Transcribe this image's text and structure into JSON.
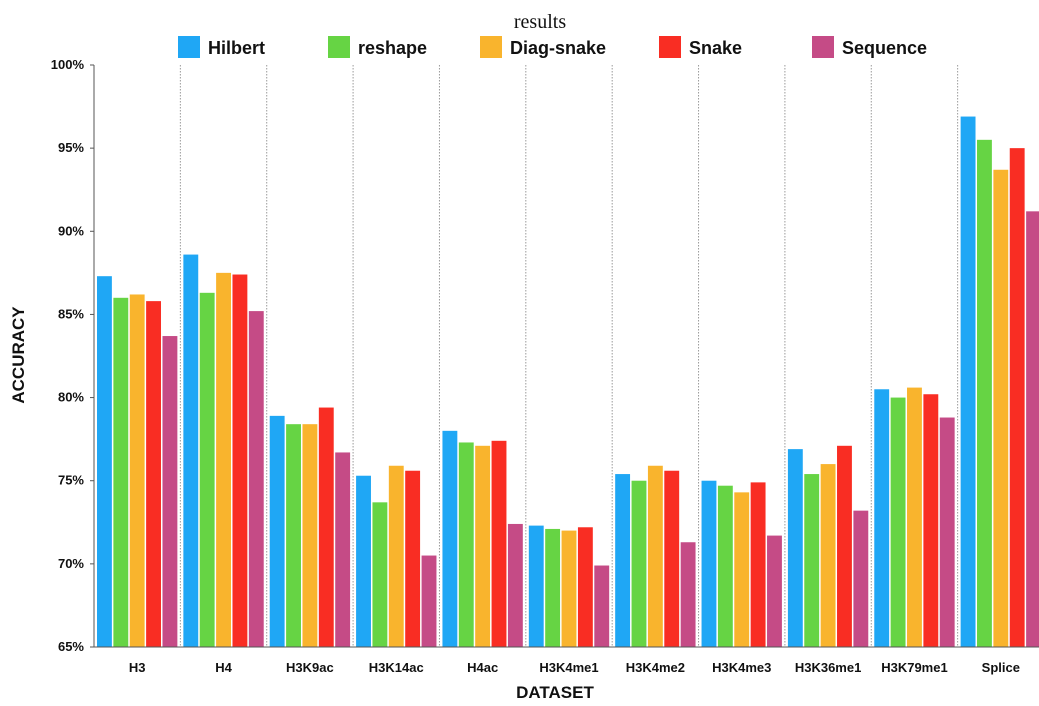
{
  "chart_data": {
    "type": "bar",
    "title": "results",
    "xlabel": "DATASET",
    "ylabel": "ACCURACY",
    "ylim": [
      65,
      100
    ],
    "yticks": [
      65,
      70,
      75,
      80,
      85,
      90,
      95,
      100
    ],
    "ytick_labels": [
      "65%",
      "70%",
      "75%",
      "80%",
      "85%",
      "90%",
      "95%",
      "100%"
    ],
    "categories": [
      "H3",
      "H4",
      "H3K9ac",
      "H3K14ac",
      "H4ac",
      "H3K4me1",
      "H3K4me2",
      "H3K4me3",
      "H3K36me1",
      "H3K79me1",
      "Splice"
    ],
    "legend_position": "top",
    "grid": "vertical dotted separators between categories",
    "series": [
      {
        "name": "Hilbert",
        "color": "#1fa7f5",
        "values": [
          87.3,
          88.6,
          78.9,
          75.3,
          78.0,
          72.3,
          75.4,
          75.0,
          76.9,
          80.5,
          96.9
        ]
      },
      {
        "name": "reshape",
        "color": "#66d444",
        "values": [
          86.0,
          86.3,
          78.4,
          73.7,
          77.3,
          72.1,
          75.0,
          74.7,
          75.4,
          80.0,
          95.5
        ]
      },
      {
        "name": "Diag-snake",
        "color": "#f9b42d",
        "values": [
          86.2,
          87.5,
          78.4,
          75.9,
          77.1,
          72.0,
          75.9,
          74.3,
          76.0,
          80.6,
          93.7
        ]
      },
      {
        "name": "Snake",
        "color": "#f92d23",
        "values": [
          85.8,
          87.4,
          79.4,
          75.6,
          77.4,
          72.2,
          75.6,
          74.9,
          77.1,
          80.2,
          95.0
        ]
      },
      {
        "name": "Sequence",
        "color": "#c54b86",
        "values": [
          83.7,
          85.2,
          76.7,
          70.5,
          72.4,
          69.9,
          71.3,
          71.7,
          73.2,
          78.8,
          91.2
        ]
      }
    ]
  }
}
